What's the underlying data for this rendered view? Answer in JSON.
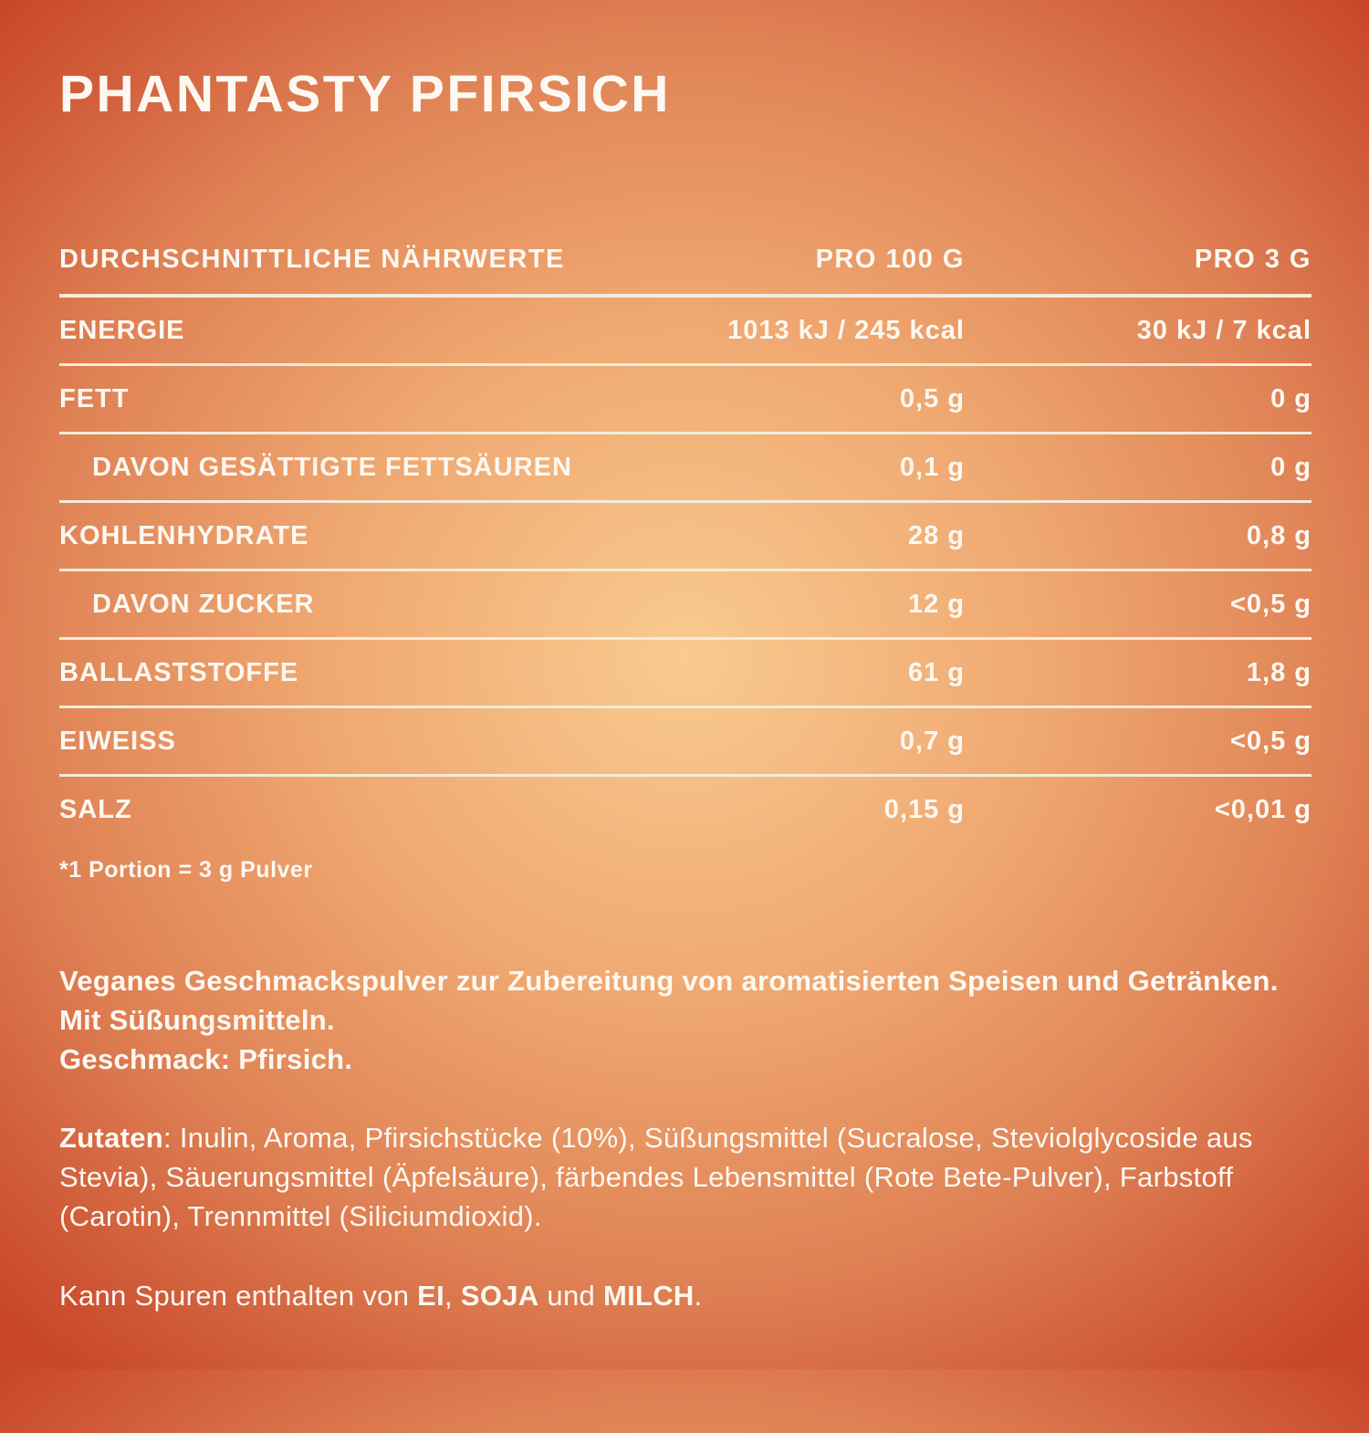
{
  "colors": {
    "bg_center": "#F8CB90",
    "bg_mid": "#DF8255",
    "bg_corner": "#C8472A",
    "text": "#FDF8F1",
    "divider": "#F3ECDA"
  },
  "title": "PHANTASTY PFIRSICH",
  "table": {
    "headers": {
      "label": "DURCHSCHNITTLICHE NÄHRWERTE",
      "per100": "PRO 100 G",
      "per3": "PRO 3 G"
    },
    "rows": [
      {
        "label": "ENERGIE",
        "per100": "1013 kJ / 245 kcal",
        "per3": "30 kJ / 7 kcal"
      },
      {
        "label": "FETT",
        "per100": "0,5 g",
        "per3": "0 g"
      },
      {
        "label": "DAVON GESÄTTIGTE FETTSÄUREN",
        "per100": "0,1 g",
        "per3": "0 g"
      },
      {
        "label": "KOHLENHYDRATE",
        "per100": "28 g",
        "per3": "0,8 g"
      },
      {
        "label": "DAVON ZUCKER",
        "per100": "12 g",
        "per3": "<0,5 g"
      },
      {
        "label": "BALLASTSTOFFE",
        "per100": "61 g",
        "per3": "1,8 g"
      },
      {
        "label": "EIWEISS",
        "per100": "0,7 g",
        "per3": "<0,5 g"
      },
      {
        "label": "SALZ",
        "per100": "0,15 g",
        "per3": "<0,01 g"
      }
    ],
    "footnote": "*1 Portion = 3 g Pulver"
  },
  "description": {
    "line1": "Veganes Geschmackspulver zur Zubereitung von aromatisierten Speisen und Getränken. Mit Süßungsmitteln.",
    "line2": "Geschmack: Pfirsich."
  },
  "ingredients": {
    "lead": "Zutaten",
    "rest": ": Inulin, Aroma, Pfirsichstücke (10%), Süßungsmittel (Sucralose, Steviolglycoside aus Stevia), Säuerungsmittel (Äpfelsäure), färbendes Lebensmittel (Rote Bete-Pulver), Farbstoff (Carotin), Trennmittel (Siliciumdioxid)."
  },
  "allergens": {
    "prefix": "Kann Spuren enthalten von ",
    "a1": "EI",
    "sep1": ", ",
    "a2": "SOJA",
    "sep2": " und ",
    "a3": "MILCH",
    "suffix": "."
  }
}
